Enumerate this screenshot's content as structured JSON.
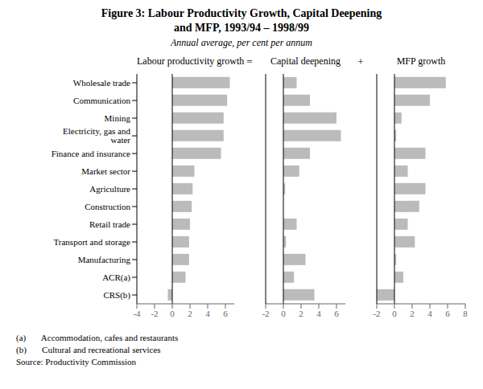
{
  "title": "Figure 3: Labour Productivity Growth, Capital Deepening\nand MFP, 1993/94 – 1998/99",
  "subtitle": "Annual average, per cent per annum",
  "annotations": [
    "(a)       Accommodation, cafes and restaurants",
    "(b)       Cultural and recreational services",
    "Source: Productivity Commission"
  ],
  "chart_data": [
    {
      "type": "bar",
      "orientation": "horizontal",
      "title": "Labour productivity growth",
      "categories": [
        "Wholesale trade",
        "Communication",
        "Mining",
        "Electricity, gas and water",
        "Finance and insurance",
        "Market sector",
        "Agriculture",
        "Construction",
        "Retail trade",
        "Transport and storage",
        "Manufacturing",
        "ACR(a)",
        "CRS(b)"
      ],
      "values": [
        6.5,
        6.2,
        5.8,
        5.8,
        5.5,
        2.5,
        2.3,
        2.2,
        2.0,
        1.9,
        1.9,
        1.5,
        -0.5
      ],
      "color": "#bbbbbb",
      "xlim": [
        -4,
        7
      ],
      "xticks": [
        -4,
        -2,
        0,
        2,
        4,
        6
      ],
      "grid": false
    },
    {
      "type": "bar",
      "orientation": "horizontal",
      "title": "Capital deepening",
      "annotations": [
        "="
      ],
      "categories": [
        "Wholesale trade",
        "Communication",
        "Mining",
        "Electricity, gas and water",
        "Finance and insurance",
        "Market sector",
        "Agriculture",
        "Construction",
        "Retail trade",
        "Transport and storage",
        "Manufacturing",
        "ACR(a)",
        "CRS(b)"
      ],
      "values": [
        1.5,
        3.0,
        6.0,
        6.5,
        3.0,
        1.8,
        0.2,
        0.0,
        1.5,
        0.3,
        2.5,
        1.2,
        3.5
      ],
      "color": "#bbbbbb",
      "xlim": [
        -2,
        7
      ],
      "xticks": [
        -2,
        0,
        2,
        4,
        6
      ],
      "grid": false,
      "tick_labels": "x"
    },
    {
      "type": "bar",
      "orientation": "horizontal",
      "title": "MFP growth",
      "annotations": [
        "+"
      ],
      "categories": [
        "Wholesale trade",
        "Communication",
        "Mining",
        "Electricity, gas and water",
        "Finance and insurance",
        "Market sector",
        "Agriculture",
        "Construction",
        "Retail trade",
        "Transport and storage",
        "Manufacturing",
        "ACR(a)",
        "CRS(b)"
      ],
      "values": [
        5.8,
        4.0,
        0.8,
        0.2,
        3.5,
        1.5,
        3.5,
        2.8,
        1.5,
        2.3,
        0.2,
        1.0,
        -2.0
      ],
      "color": "#bbbbbb",
      "xlim": [
        -2,
        8
      ],
      "xticks": [
        -2,
        0,
        2,
        4,
        6,
        8
      ],
      "grid": false,
      "tick_labels": "x"
    }
  ]
}
